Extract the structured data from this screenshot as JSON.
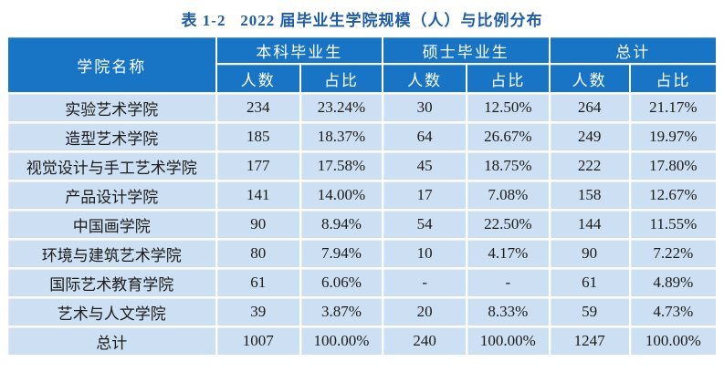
{
  "title": "表 1-2   2022 届毕业生学院规模（人）与比例分布",
  "table": {
    "college_header": "学院名称",
    "groups": [
      "本科毕业生",
      "硕士毕业生",
      "总计"
    ],
    "subheaders": {
      "count": "人数",
      "ratio": "占比"
    },
    "rows": [
      [
        "实验艺术学院",
        "234",
        "23.24%",
        "30",
        "12.50%",
        "264",
        "21.17%"
      ],
      [
        "造型艺术学院",
        "185",
        "18.37%",
        "64",
        "26.67%",
        "249",
        "19.97%"
      ],
      [
        "视觉设计与手工艺术学院",
        "177",
        "17.58%",
        "45",
        "18.75%",
        "222",
        "17.80%"
      ],
      [
        "产品设计学院",
        "141",
        "14.00%",
        "17",
        "7.08%",
        "158",
        "12.67%"
      ],
      [
        "中国画学院",
        "90",
        "8.94%",
        "54",
        "22.50%",
        "144",
        "11.55%"
      ],
      [
        "环境与建筑艺术学院",
        "80",
        "7.94%",
        "10",
        "4.17%",
        "90",
        "7.22%"
      ],
      [
        "国际艺术教育学院",
        "61",
        "6.06%",
        "-",
        "-",
        "61",
        "4.89%"
      ],
      [
        "艺术与人文学院",
        "39",
        "3.87%",
        "20",
        "8.33%",
        "59",
        "4.73%"
      ],
      [
        "总计",
        "1007",
        "100.00%",
        "240",
        "100.00%",
        "1247",
        "100.00%"
      ]
    ]
  },
  "colors": {
    "header_bg": "#1874c4",
    "row_bg": "#cddff2",
    "title_color": "#1e5ca6",
    "separator": "#ffffff"
  }
}
